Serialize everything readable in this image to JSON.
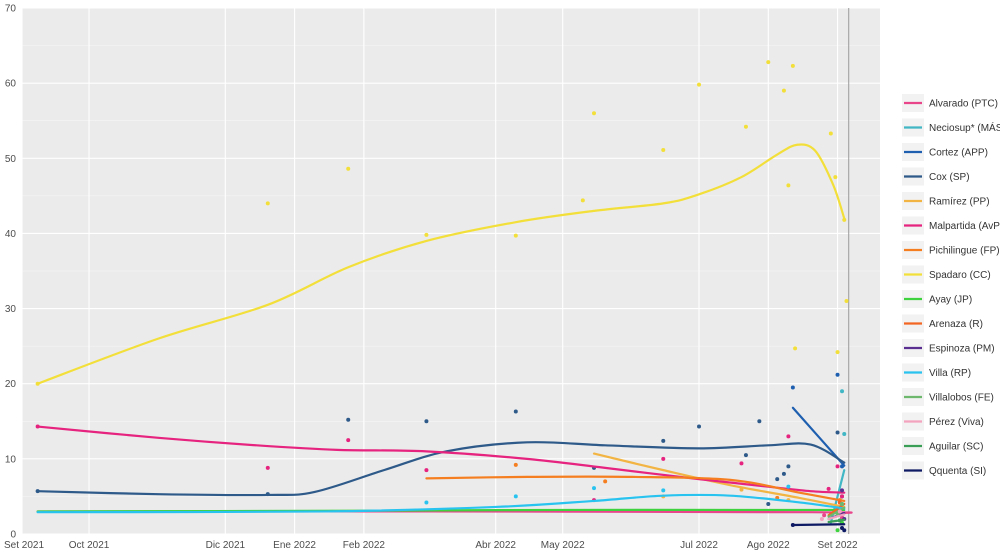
{
  "chart_data": {
    "type": "line",
    "title": "",
    "xlabel": "",
    "ylabel": "",
    "x_axis": {
      "type": "date",
      "range": [
        "2021-09-01",
        "2022-09-20"
      ],
      "ticks": [
        {
          "date": "2021-09-01",
          "label": "Set 2021"
        },
        {
          "date": "2021-10-01",
          "label": "Oct 2021"
        },
        {
          "date": "2021-12-01",
          "label": "Dic 2021"
        },
        {
          "date": "2022-01-01",
          "label": "Ene 2022"
        },
        {
          "date": "2022-02-01",
          "label": "Feb 2022"
        },
        {
          "date": "2022-04-01",
          "label": "Abr 2022"
        },
        {
          "date": "2022-05-01",
          "label": "May 2022"
        },
        {
          "date": "2022-07-01",
          "label": "Jul 2022"
        },
        {
          "date": "2022-08-01",
          "label": "Ago 2022"
        },
        {
          "date": "2022-09-01",
          "label": "Set 2022"
        }
      ]
    },
    "y_axis": {
      "range": [
        0,
        70
      ],
      "ticks": [
        0,
        10,
        20,
        30,
        40,
        50,
        60,
        70
      ]
    },
    "grid": true,
    "legend_position": "right",
    "vline_date": "2022-09-06",
    "series": [
      {
        "name": "Alvarado (PTC)",
        "color": "#e8458b",
        "trend": [
          [
            "2021-09-08",
            3.0
          ],
          [
            "2022-03-01",
            3.0
          ],
          [
            "2022-08-20",
            2.9
          ],
          [
            "2022-09-04",
            2.8
          ]
        ],
        "points": [
          [
            "2022-08-26",
            2.5
          ],
          [
            "2022-09-01",
            3.0
          ],
          [
            "2022-09-03",
            2.2
          ]
        ]
      },
      {
        "name": "Neciosup* (MÁS)",
        "color": "#41b6c4",
        "trend": [
          [
            "2022-08-29",
            1.5
          ],
          [
            "2022-09-04",
            8.5
          ]
        ],
        "points": [
          [
            "2022-09-03",
            19.0
          ],
          [
            "2022-09-04",
            13.3
          ]
        ]
      },
      {
        "name": "Cortez (APP)",
        "color": "#1f5fb0",
        "trend": [
          [
            "2022-08-12",
            16.8
          ],
          [
            "2022-09-04",
            9.1
          ]
        ],
        "points": [
          [
            "2022-08-12",
            19.5
          ],
          [
            "2022-09-01",
            21.2
          ],
          [
            "2022-09-03",
            9.0
          ]
        ]
      },
      {
        "name": "Cox (SP)",
        "color": "#2e5a8a",
        "trend": [
          [
            "2021-09-08",
            5.7
          ],
          [
            "2021-11-01",
            5.3
          ],
          [
            "2021-12-20",
            5.2
          ],
          [
            "2022-01-10",
            5.6
          ],
          [
            "2022-02-10",
            8.5
          ],
          [
            "2022-03-10",
            11.0
          ],
          [
            "2022-04-15",
            12.2
          ],
          [
            "2022-05-20",
            11.8
          ],
          [
            "2022-07-01",
            11.4
          ],
          [
            "2022-08-01",
            11.8
          ],
          [
            "2022-08-20",
            11.9
          ],
          [
            "2022-09-04",
            9.5
          ]
        ],
        "points": [
          [
            "2021-09-08",
            5.7
          ],
          [
            "2021-12-20",
            5.3
          ],
          [
            "2022-01-25",
            15.2
          ],
          [
            "2022-03-01",
            15.0
          ],
          [
            "2022-04-10",
            16.3
          ],
          [
            "2022-05-15",
            8.8
          ],
          [
            "2022-06-15",
            12.4
          ],
          [
            "2022-07-01",
            14.3
          ],
          [
            "2022-07-22",
            10.5
          ],
          [
            "2022-07-28",
            15.0
          ],
          [
            "2022-08-01",
            4.0
          ],
          [
            "2022-08-05",
            7.3
          ],
          [
            "2022-08-08",
            8.0
          ],
          [
            "2022-08-10",
            9.0
          ],
          [
            "2022-09-01",
            13.5
          ],
          [
            "2022-09-03",
            5.0
          ]
        ]
      },
      {
        "name": "Ramírez (PP)",
        "color": "#f2b544",
        "trend": [
          [
            "2022-05-15",
            10.7
          ],
          [
            "2022-06-15",
            8.5
          ],
          [
            "2022-07-15",
            6.5
          ],
          [
            "2022-08-15",
            4.8
          ],
          [
            "2022-09-04",
            3.6
          ]
        ],
        "points": [
          [
            "2022-06-15",
            5.0
          ],
          [
            "2022-07-20",
            5.9
          ],
          [
            "2022-08-10",
            4.5
          ],
          [
            "2022-09-01",
            3.5
          ]
        ]
      },
      {
        "name": "Malpartida (AvP)",
        "color": "#e6237e",
        "trend": [
          [
            "2021-09-08",
            14.3
          ],
          [
            "2021-11-01",
            12.8
          ],
          [
            "2021-12-15",
            11.8
          ],
          [
            "2022-01-20",
            11.2
          ],
          [
            "2022-03-01",
            11.0
          ],
          [
            "2022-04-15",
            10.0
          ],
          [
            "2022-05-20",
            8.8
          ],
          [
            "2022-07-01",
            7.3
          ],
          [
            "2022-08-01",
            6.3
          ],
          [
            "2022-08-20",
            5.7
          ],
          [
            "2022-09-04",
            5.5
          ]
        ],
        "points": [
          [
            "2021-09-08",
            14.3
          ],
          [
            "2021-12-20",
            8.8
          ],
          [
            "2022-01-25",
            12.5
          ],
          [
            "2022-03-01",
            8.5
          ],
          [
            "2022-05-15",
            4.5
          ],
          [
            "2022-06-15",
            10.0
          ],
          [
            "2022-07-20",
            9.4
          ],
          [
            "2022-08-10",
            13.0
          ],
          [
            "2022-08-28",
            6.0
          ],
          [
            "2022-09-01",
            9.0
          ],
          [
            "2022-09-03",
            5.0
          ]
        ]
      },
      {
        "name": "Pichilingue (FP)",
        "color": "#f57f20",
        "trend": [
          [
            "2022-03-01",
            7.4
          ],
          [
            "2022-04-15",
            7.6
          ],
          [
            "2022-06-01",
            7.6
          ],
          [
            "2022-07-15",
            7.2
          ],
          [
            "2022-08-15",
            5.5
          ],
          [
            "2022-09-04",
            4.4
          ]
        ],
        "points": [
          [
            "2022-04-10",
            9.2
          ],
          [
            "2022-05-20",
            7.0
          ],
          [
            "2022-08-05",
            4.8
          ],
          [
            "2022-09-02",
            4.5
          ]
        ]
      },
      {
        "name": "Spadaro (CC)",
        "color": "#f3df3a",
        "trend": [
          [
            "2021-09-08",
            20.0
          ],
          [
            "2021-11-01",
            26.0
          ],
          [
            "2021-12-20",
            30.5
          ],
          [
            "2022-01-25",
            35.5
          ],
          [
            "2022-03-01",
            39.0
          ],
          [
            "2022-04-10",
            41.5
          ],
          [
            "2022-05-15",
            43.0
          ],
          [
            "2022-06-15",
            44.0
          ],
          [
            "2022-07-01",
            45.2
          ],
          [
            "2022-07-20",
            47.5
          ],
          [
            "2022-08-05",
            50.5
          ],
          [
            "2022-08-14",
            51.8
          ],
          [
            "2022-08-22",
            51.0
          ],
          [
            "2022-08-30",
            46.5
          ],
          [
            "2022-09-04",
            42.0
          ]
        ],
        "points": [
          [
            "2021-09-08",
            20.0
          ],
          [
            "2021-12-20",
            44.0
          ],
          [
            "2022-01-25",
            48.6
          ],
          [
            "2022-03-01",
            39.8
          ],
          [
            "2022-04-10",
            39.7
          ],
          [
            "2022-05-10",
            44.4
          ],
          [
            "2022-05-15",
            56.0
          ],
          [
            "2022-06-15",
            51.1
          ],
          [
            "2022-07-01",
            59.8
          ],
          [
            "2022-07-22",
            54.2
          ],
          [
            "2022-08-01",
            62.8
          ],
          [
            "2022-08-08",
            59.0
          ],
          [
            "2022-08-10",
            46.4
          ],
          [
            "2022-08-12",
            62.3
          ],
          [
            "2022-08-13",
            24.7
          ],
          [
            "2022-08-29",
            53.3
          ],
          [
            "2022-08-31",
            47.5
          ],
          [
            "2022-09-01",
            24.2
          ],
          [
            "2022-09-04",
            41.8
          ],
          [
            "2022-09-05",
            31.0
          ]
        ]
      },
      {
        "name": "Ayay (JP)",
        "color": "#3fd23f",
        "trend": [
          [
            "2021-09-08",
            3.0
          ],
          [
            "2022-02-01",
            3.1
          ],
          [
            "2022-05-01",
            3.2
          ],
          [
            "2022-08-01",
            3.2
          ],
          [
            "2022-09-04",
            3.2
          ]
        ],
        "points": [
          [
            "2022-09-01",
            0.5
          ],
          [
            "2022-09-03",
            1.5
          ]
        ]
      },
      {
        "name": "Arenaza (R)",
        "color": "#f26522",
        "trend": [
          [
            "2022-08-28",
            2.5
          ],
          [
            "2022-09-04",
            4.0
          ]
        ],
        "points": [
          [
            "2022-09-02",
            4.2
          ]
        ]
      },
      {
        "name": "Espinoza (PM)",
        "color": "#5a2d91",
        "trend": [
          [
            "2022-08-28",
            2.0
          ],
          [
            "2022-09-04",
            2.8
          ]
        ],
        "points": [
          [
            "2022-09-03",
            5.8
          ],
          [
            "2022-09-04",
            2.0
          ]
        ]
      },
      {
        "name": "Villa (RP)",
        "color": "#29c3f0",
        "trend": [
          [
            "2021-09-08",
            2.9
          ],
          [
            "2022-01-15",
            3.0
          ],
          [
            "2022-04-01",
            3.6
          ],
          [
            "2022-05-15",
            4.4
          ],
          [
            "2022-06-15",
            5.1
          ],
          [
            "2022-07-15",
            5.1
          ],
          [
            "2022-08-15",
            4.2
          ],
          [
            "2022-09-04",
            3.4
          ]
        ],
        "points": [
          [
            "2022-03-01",
            4.2
          ],
          [
            "2022-04-10",
            5.0
          ],
          [
            "2022-05-15",
            6.1
          ],
          [
            "2022-06-15",
            5.8
          ],
          [
            "2022-08-10",
            6.3
          ],
          [
            "2022-09-03",
            4.0
          ]
        ]
      },
      {
        "name": "Villalobos (FE)",
        "color": "#6db86d",
        "trend": [
          [
            "2022-08-28",
            2.3
          ],
          [
            "2022-09-04",
            3.5
          ]
        ],
        "points": [
          [
            "2022-09-01",
            2.7
          ],
          [
            "2022-09-03",
            4.0
          ]
        ]
      },
      {
        "name": "Pérez (Viva)",
        "color": "#f4a3bf",
        "trend": [
          [
            "2022-08-28",
            2.0
          ],
          [
            "2022-09-04",
            2.6
          ]
        ],
        "points": [
          [
            "2022-08-25",
            2.0
          ],
          [
            "2022-09-02",
            3.0
          ]
        ]
      },
      {
        "name": "Aguilar (SC)",
        "color": "#3a9e57",
        "trend": [
          [
            "2022-08-28",
            1.6
          ],
          [
            "2022-09-04",
            1.9
          ]
        ],
        "points": [
          [
            "2022-09-02",
            1.8
          ]
        ]
      },
      {
        "name": "Qquenta (SI)",
        "color": "#0e1a63",
        "trend": [
          [
            "2022-08-12",
            1.2
          ],
          [
            "2022-09-04",
            1.3
          ]
        ],
        "points": [
          [
            "2022-08-12",
            1.2
          ],
          [
            "2022-09-03",
            0.8
          ],
          [
            "2022-09-04",
            0.5
          ]
        ]
      }
    ]
  }
}
